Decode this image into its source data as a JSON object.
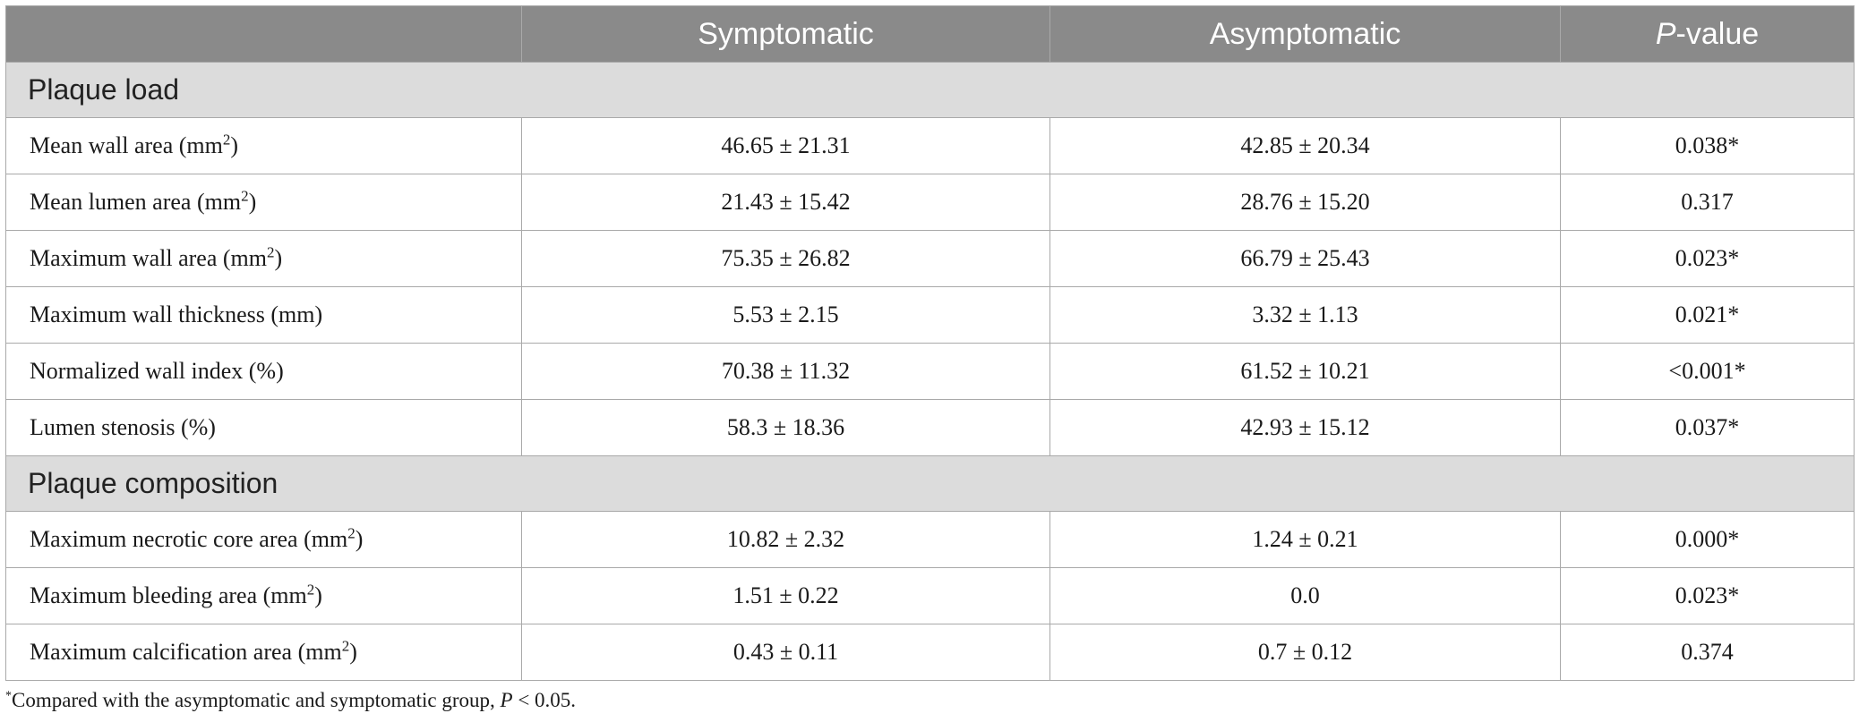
{
  "table": {
    "headers": {
      "col1": "",
      "col2": "Symptomatic",
      "col3": "Asymptomatic",
      "p_italic": "P",
      "p_rest": "-value"
    },
    "sections": [
      {
        "title": "Plaque load",
        "rows": [
          {
            "label": "Mean wall area (mm",
            "sup": "2",
            "label_end": ")",
            "symptomatic": "46.65 ± 21.31",
            "asymptomatic": "42.85 ± 20.34",
            "p": "0.038*"
          },
          {
            "label": "Mean lumen area (mm",
            "sup": "2",
            "label_end": ")",
            "symptomatic": "21.43 ± 15.42",
            "asymptomatic": "28.76 ± 15.20",
            "p": "0.317"
          },
          {
            "label": "Maximum wall area (mm",
            "sup": "2",
            "label_end": ")",
            "symptomatic": "75.35 ± 26.82",
            "asymptomatic": "66.79 ± 25.43",
            "p": "0.023*"
          },
          {
            "label": "Maximum wall thickness (mm)",
            "sup": "",
            "label_end": "",
            "symptomatic": "5.53 ± 2.15",
            "asymptomatic": "3.32 ± 1.13",
            "p": "0.021*"
          },
          {
            "label": "Normalized wall index (%)",
            "sup": "",
            "label_end": "",
            "symptomatic": "70.38 ± 11.32",
            "asymptomatic": "61.52 ± 10.21",
            "p": "<0.001*"
          },
          {
            "label": "Lumen stenosis (%)",
            "sup": "",
            "label_end": "",
            "symptomatic": "58.3 ± 18.36",
            "asymptomatic": "42.93 ± 15.12",
            "p": "0.037*"
          }
        ]
      },
      {
        "title": "Plaque composition",
        "rows": [
          {
            "label": "Maximum necrotic core area (mm",
            "sup": "2",
            "label_end": ")",
            "symptomatic": "10.82 ± 2.32",
            "asymptomatic": "1.24 ± 0.21",
            "p": "0.000*"
          },
          {
            "label": "Maximum bleeding area (mm",
            "sup": "2",
            "label_end": ")",
            "symptomatic": "1.51 ± 0.22",
            "asymptomatic": "0.0",
            "p": "0.023*"
          },
          {
            "label": "Maximum calcification area (mm",
            "sup": "2",
            "label_end": ")",
            "symptomatic": "0.43 ± 0.11",
            "asymptomatic": "0.7 ± 0.12",
            "p": "0.374"
          }
        ]
      }
    ]
  },
  "footnote": {
    "mark": "*",
    "text": "Compared with the asymptomatic and symptomatic group, ",
    "p_italic": "P",
    "end": " < 0.05."
  }
}
